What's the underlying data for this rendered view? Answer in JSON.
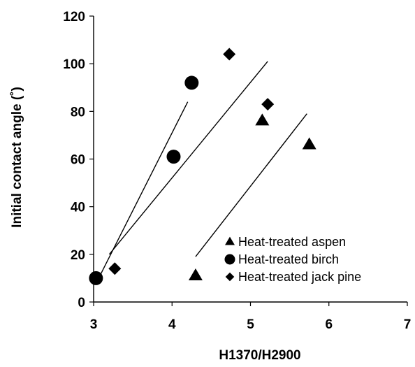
{
  "chart_data": {
    "type": "scatter",
    "xlabel": "H1370/H2900",
    "ylabel": "Initial contact  angle (˚)",
    "xlim": [
      3,
      7
    ],
    "ylim": [
      0,
      120
    ],
    "x_ticks": [
      "3",
      "4",
      "5",
      "6",
      "7"
    ],
    "y_ticks": [
      "0",
      "20",
      "40",
      "60",
      "80",
      "100",
      "120"
    ],
    "grid": false,
    "legend_position": "bottom-right",
    "series": [
      {
        "name": "Heat-treated aspen",
        "marker": "triangle",
        "points": [
          [
            4.3,
            11
          ],
          [
            5.15,
            76
          ],
          [
            5.75,
            66
          ]
        ],
        "trendline": [
          [
            4.3,
            19
          ],
          [
            5.72,
            79
          ]
        ]
      },
      {
        "name": "Heat-treated birch",
        "marker": "circle",
        "points": [
          [
            3.03,
            10
          ],
          [
            4.02,
            61
          ],
          [
            4.25,
            92
          ]
        ],
        "trendline": [
          [
            3.08,
            11
          ],
          [
            4.2,
            84
          ]
        ]
      },
      {
        "name": "Heat-treated jack pine",
        "marker": "diamond",
        "points": [
          [
            3.27,
            14
          ],
          [
            4.73,
            104
          ],
          [
            5.22,
            83
          ]
        ],
        "trendline": [
          [
            3.2,
            20
          ],
          [
            5.22,
            101
          ]
        ]
      }
    ],
    "colors": {
      "marks": "#000000",
      "axes": "#000000",
      "background": "#ffffff"
    }
  }
}
